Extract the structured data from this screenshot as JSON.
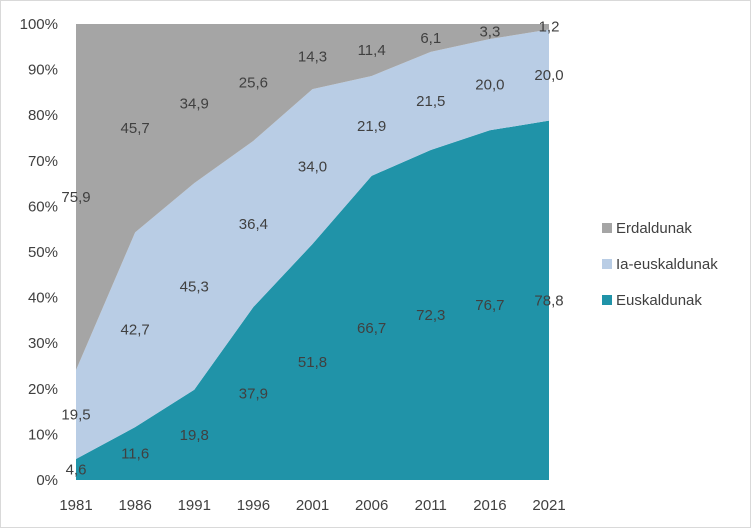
{
  "chart_data": {
    "type": "area",
    "stacked": true,
    "percent": true,
    "title": "",
    "xlabel": "",
    "ylabel": "",
    "categories": [
      "1981",
      "1986",
      "1991",
      "1996",
      "2001",
      "2006",
      "2011",
      "2016",
      "2021"
    ],
    "ylim": [
      0,
      100
    ],
    "yticks": [
      "0%",
      "10%",
      "20%",
      "30%",
      "40%",
      "50%",
      "60%",
      "70%",
      "80%",
      "90%",
      "100%"
    ],
    "legend_position": "right",
    "series": [
      {
        "name": "Euskaldunak",
        "color": "#2093a8",
        "values": [
          4.6,
          11.6,
          19.8,
          37.9,
          51.8,
          66.7,
          72.3,
          76.7,
          78.8
        ],
        "labels": [
          "4,6",
          "11,6",
          "19,8",
          "37,9",
          "51,8",
          "66,7",
          "72,3",
          "76,7",
          "78,8"
        ]
      },
      {
        "name": "Ia-euskaldunak",
        "color": "#b9cde5",
        "values": [
          19.5,
          42.7,
          45.3,
          36.4,
          34.0,
          21.9,
          21.5,
          20.0,
          20.0
        ],
        "labels": [
          "19,5",
          "42,7",
          "45,3",
          "36,4",
          "34,0",
          "21,9",
          "21,5",
          "20,0",
          "20,0"
        ]
      },
      {
        "name": "Erdaldunak",
        "color": "#a5a5a5",
        "values": [
          75.9,
          45.7,
          34.9,
          25.6,
          14.3,
          11.4,
          6.1,
          3.3,
          1.2
        ],
        "labels": [
          "75,9",
          "45,7",
          "34,9",
          "25,6",
          "14,3",
          "11,4",
          "6,1",
          "3,3",
          "1,2"
        ]
      }
    ],
    "legend_order": [
      "Erdaldunak",
      "Ia-euskaldunak",
      "Euskaldunak"
    ]
  }
}
